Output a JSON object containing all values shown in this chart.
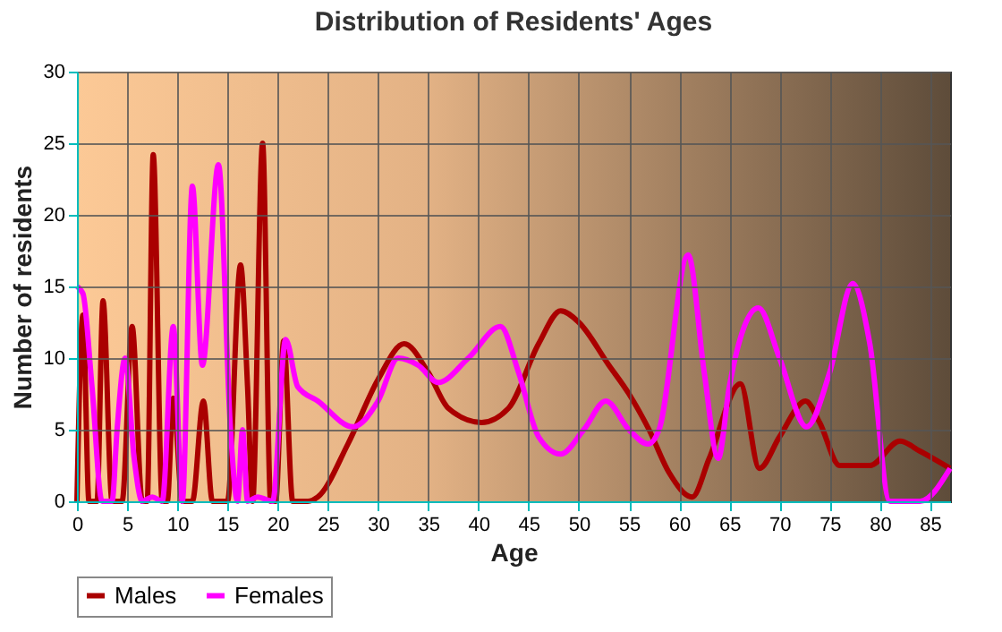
{
  "chart_data": {
    "type": "line",
    "title": "Distribution of Residents' Ages",
    "xlabel": "Age",
    "ylabel": "Number of residents",
    "xlim": [
      0,
      87
    ],
    "xticks": [
      0,
      5,
      10,
      15,
      20,
      25,
      30,
      35,
      40,
      45,
      50,
      55,
      60,
      65,
      70,
      75,
      80,
      85
    ],
    "ylim": [
      0,
      30
    ],
    "yticks": [
      0,
      5,
      10,
      15,
      20,
      25,
      30
    ],
    "grid": true,
    "legend": "bottom",
    "marker": "none",
    "series": [
      {
        "name": "Males",
        "color": "#aa0000",
        "x": [
          0,
          0.6,
          1.2,
          2,
          2.6,
          3.5,
          4.5,
          5.5,
          6.5,
          7,
          7.6,
          8.5,
          9,
          9.6,
          10.5,
          11.5,
          12.6,
          13.5,
          15,
          16.3,
          17,
          17.5,
          18.5,
          19.3,
          19.8,
          20.6,
          21.5,
          22,
          23,
          24,
          27,
          30,
          32.6,
          35,
          37,
          40.3,
          43,
          46,
          48.2,
          50,
          53,
          55,
          57,
          59,
          61.3,
          63,
          66.1,
          68,
          70,
          72.6,
          74,
          76,
          79,
          82,
          84,
          87
        ],
        "values": [
          0,
          13,
          0,
          0,
          14,
          0,
          0,
          12.2,
          0,
          0,
          24.2,
          0,
          0,
          7.2,
          0,
          0,
          7,
          0,
          0,
          16.5,
          8,
          0,
          25,
          0,
          0,
          11.2,
          0,
          0,
          0,
          0.3,
          4,
          8.5,
          11,
          9,
          6.5,
          5.5,
          6.5,
          11,
          13.3,
          12.5,
          9.5,
          7.5,
          5,
          2,
          0.3,
          3,
          8.2,
          2.3,
          4.5,
          7,
          5.5,
          2.5,
          2.5,
          4.2,
          3.5,
          2.3
        ]
      },
      {
        "name": "Females",
        "color": "#ff00ff",
        "x": [
          0,
          0.6,
          1.5,
          2.5,
          3.5,
          4,
          4.8,
          5.7,
          6.5,
          7.5,
          8.5,
          9.6,
          10.5,
          11.5,
          12.5,
          14.1,
          15.3,
          16,
          16.5,
          17,
          18,
          19.5,
          20.8,
          22,
          24,
          27.5,
          30,
          32,
          34,
          36,
          39,
          42.2,
          44,
          46,
          48.2,
          50.5,
          52.7,
          55,
          56.9,
          58,
          60.9,
          62.5,
          63.9,
          65,
          67.9,
          70,
          72.7,
          75,
          77.3,
          79,
          81,
          84,
          87
        ],
        "values": [
          15,
          14.5,
          8,
          0,
          0,
          5,
          10,
          3,
          0,
          0.3,
          0,
          12.2,
          0,
          22,
          9.5,
          23.5,
          5,
          0,
          5,
          0,
          0.3,
          0,
          11.3,
          8,
          7,
          5.2,
          7,
          10,
          9.5,
          8.3,
          10,
          12.2,
          9,
          4.5,
          3.3,
          5,
          7,
          5,
          4,
          5,
          17.2,
          9,
          3,
          8,
          13.5,
          10,
          5.2,
          9,
          15.2,
          11,
          0,
          0,
          2.3
        ]
      }
    ]
  }
}
